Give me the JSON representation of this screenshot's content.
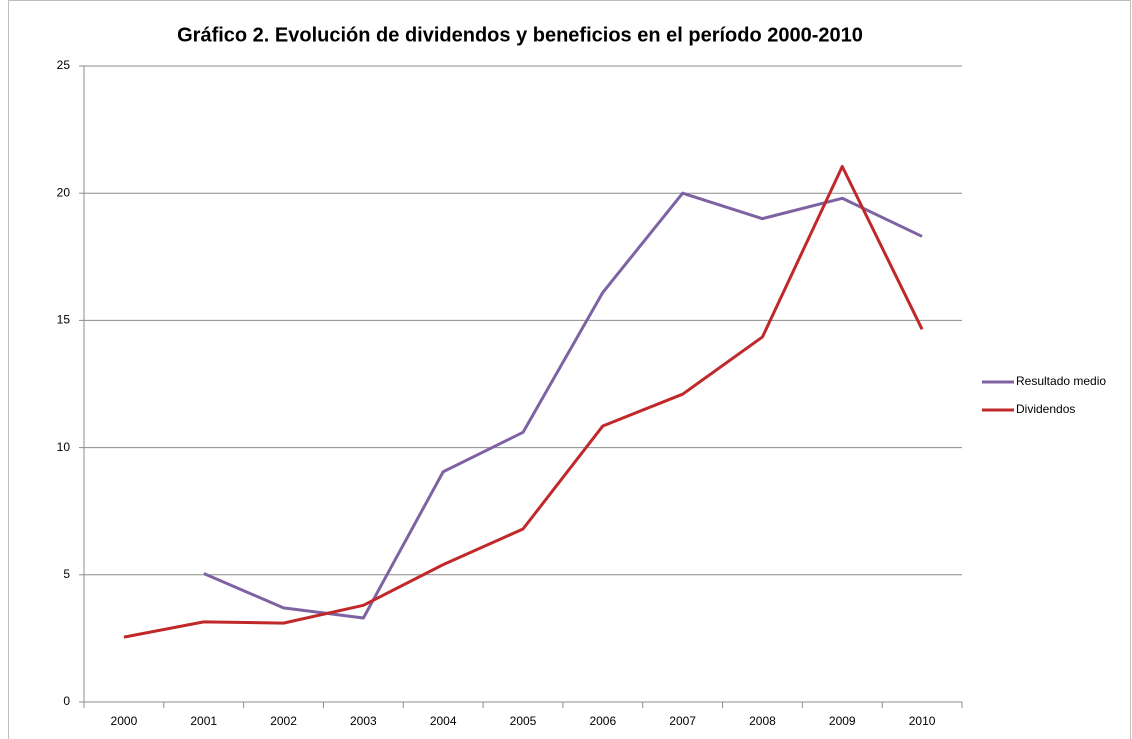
{
  "chart_data": {
    "type": "line",
    "title": "Gráfico 2. Evolución de dividendos y beneficios en el período 2000-2010",
    "categories": [
      "2000",
      "2001",
      "2002",
      "2003",
      "2004",
      "2005",
      "2006",
      "2007",
      "2008",
      "2009",
      "2010"
    ],
    "series": [
      {
        "name": "Resultado medio",
        "color": "#7e63a3",
        "values": [
          null,
          5.05,
          3.7,
          3.3,
          9.05,
          10.6,
          16.1,
          20.0,
          19.0,
          19.8,
          18.3
        ]
      },
      {
        "name": "Dividendos",
        "color": "#c0282a",
        "values": [
          2.55,
          3.15,
          3.1,
          3.8,
          5.4,
          6.8,
          10.85,
          12.1,
          14.35,
          21.05,
          14.65
        ]
      }
    ],
    "ylim": [
      0,
      25
    ],
    "yticks": [
      0,
      5,
      10,
      15,
      20,
      25
    ],
    "grid": true,
    "legend": "right"
  }
}
